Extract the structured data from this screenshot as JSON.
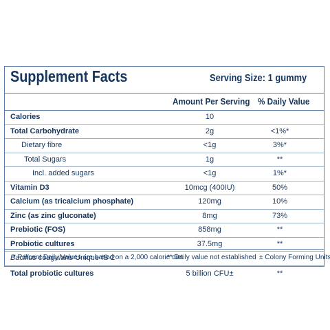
{
  "title": "Supplement Facts",
  "serving_size": "Serving Size: 1 gummy",
  "columns": {
    "amount": "Amount Per Serving",
    "daily_value": "% Daily Value"
  },
  "rows": [
    {
      "name": "Calories",
      "amount": "10",
      "dv": ""
    },
    {
      "name": "Total Carbohydrate",
      "amount": "2g",
      "dv": "<1%*"
    },
    {
      "name": "Dietary fibre",
      "amount": "<1g",
      "dv": "3%*"
    },
    {
      "name": "Total Sugars",
      "amount": "1g",
      "dv": "**"
    },
    {
      "name": "Incl. added sugars",
      "amount": "<1g",
      "dv": "1%*"
    },
    {
      "name": "Vitamin D3",
      "amount": "10mcg (400IU)",
      "dv": "50%"
    },
    {
      "name": "Calcium (as tricalcium phosphate)",
      "amount": "120mg",
      "dv": "10%"
    },
    {
      "name": "Zinc (as zinc gluconate)",
      "amount": "8mg",
      "dv": "73%"
    },
    {
      "name": "Prebiotic (FOS)",
      "amount": "858mg",
      "dv": "**"
    },
    {
      "name": "Probiotic cultures",
      "amount": "37.5mg",
      "dv": "**"
    },
    {
      "name_italic": "Bacillus coagulans",
      "name_rest": " Unique IS-2",
      "amount": "",
      "dv": ""
    },
    {
      "name": "Total probiotic cultures",
      "amount": "5 billion CFU±",
      "dv": "**"
    }
  ],
  "footnotes": {
    "percent_dv": "* Percent Daily Values are based on a 2,000 calorie diet",
    "not_established": "** Daily value not established",
    "cfu": "± Colony Forming Units"
  }
}
